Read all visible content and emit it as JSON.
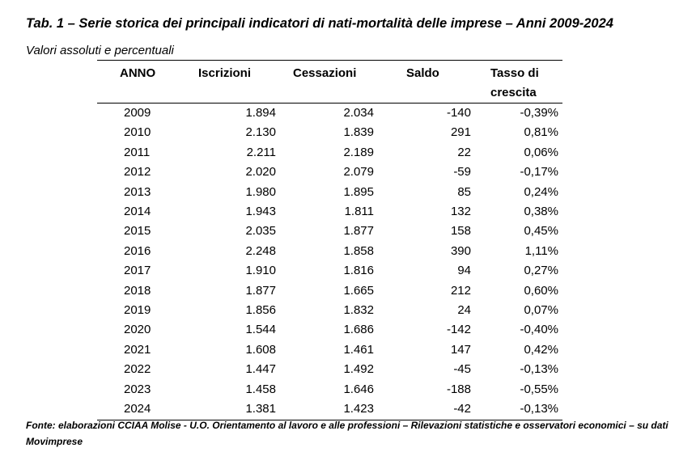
{
  "title": "Tab. 1 – Serie storica dei principali indicatori di nati-mortalità delle imprese – Anni 2009-2024",
  "subtitle": "Valori assoluti e percentuali",
  "table": {
    "headers": {
      "anno": "ANNO",
      "iscrizioni": "Iscrizioni",
      "cessazioni": "Cessazioni",
      "saldo": "Saldo",
      "tasso_line1": "Tasso di",
      "tasso_line2": "crescita"
    },
    "rows": [
      {
        "anno": "2009",
        "iscrizioni": "1.894",
        "cessazioni": "2.034",
        "saldo": "-140",
        "tasso": "-0,39%"
      },
      {
        "anno": "2010",
        "iscrizioni": "2.130",
        "cessazioni": "1.839",
        "saldo": "291",
        "tasso": "0,81%"
      },
      {
        "anno": "2011",
        "iscrizioni": "2.211",
        "cessazioni": "2.189",
        "saldo": "22",
        "tasso": "0,06%"
      },
      {
        "anno": "2012",
        "iscrizioni": "2.020",
        "cessazioni": "2.079",
        "saldo": "-59",
        "tasso": "-0,17%"
      },
      {
        "anno": "2013",
        "iscrizioni": "1.980",
        "cessazioni": "1.895",
        "saldo": "85",
        "tasso": "0,24%"
      },
      {
        "anno": "2014",
        "iscrizioni": "1.943",
        "cessazioni": "1.811",
        "saldo": "132",
        "tasso": "0,38%"
      },
      {
        "anno": "2015",
        "iscrizioni": "2.035",
        "cessazioni": "1.877",
        "saldo": "158",
        "tasso": "0,45%"
      },
      {
        "anno": "2016",
        "iscrizioni": "2.248",
        "cessazioni": "1.858",
        "saldo": "390",
        "tasso": "1,11%"
      },
      {
        "anno": "2017",
        "iscrizioni": "1.910",
        "cessazioni": "1.816",
        "saldo": "94",
        "tasso": "0,27%"
      },
      {
        "anno": "2018",
        "iscrizioni": "1.877",
        "cessazioni": "1.665",
        "saldo": "212",
        "tasso": "0,60%"
      },
      {
        "anno": "2019",
        "iscrizioni": "1.856",
        "cessazioni": "1.832",
        "saldo": "24",
        "tasso": "0,07%"
      },
      {
        "anno": "2020",
        "iscrizioni": "1.544",
        "cessazioni": "1.686",
        "saldo": "-142",
        "tasso": "-0,40%"
      },
      {
        "anno": "2021",
        "iscrizioni": "1.608",
        "cessazioni": "1.461",
        "saldo": "147",
        "tasso": "0,42%"
      },
      {
        "anno": "2022",
        "iscrizioni": "1.447",
        "cessazioni": "1.492",
        "saldo": "-45",
        "tasso": "-0,13%"
      },
      {
        "anno": "2023",
        "iscrizioni": "1.458",
        "cessazioni": "1.646",
        "saldo": "-188",
        "tasso": "-0,55%"
      },
      {
        "anno": "2024",
        "iscrizioni": "1.381",
        "cessazioni": "1.423",
        "saldo": "-42",
        "tasso": "-0,13%"
      }
    ]
  },
  "source": "Fonte: elaborazioni CCIAA Molise - U.O. Orientamento al lavoro e alle professioni – Rilevazioni statistiche e osservatori economici – su dati Movimprese"
}
